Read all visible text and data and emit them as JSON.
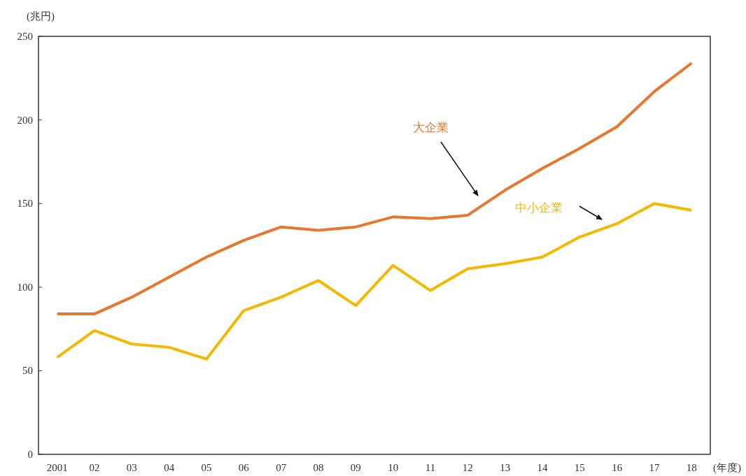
{
  "chart_data": {
    "type": "line",
    "ylabel": "(兆円)",
    "xlabel": "(年度)",
    "categories": [
      "2001",
      "02",
      "03",
      "04",
      "05",
      "06",
      "07",
      "08",
      "09",
      "10",
      "11",
      "12",
      "13",
      "14",
      "15",
      "16",
      "17",
      "18"
    ],
    "series": [
      {
        "name": "大企業",
        "color": "#e8762c",
        "values": [
          84,
          84,
          94,
          106,
          118,
          128,
          136,
          134,
          136,
          142,
          141,
          143,
          158,
          171,
          183,
          196,
          217,
          234
        ]
      },
      {
        "name": "中小企業",
        "color": "#f5b800",
        "values": [
          58,
          74,
          66,
          64,
          57,
          86,
          94,
          104,
          89,
          113,
          98,
          111,
          114,
          118,
          130,
          138,
          150,
          146
        ]
      }
    ],
    "ylim": [
      0,
      250
    ],
    "yticks": [
      0,
      50,
      100,
      150,
      200,
      250
    ],
    "grid": false,
    "legend": false,
    "marker": "none",
    "line_style": "solid"
  }
}
